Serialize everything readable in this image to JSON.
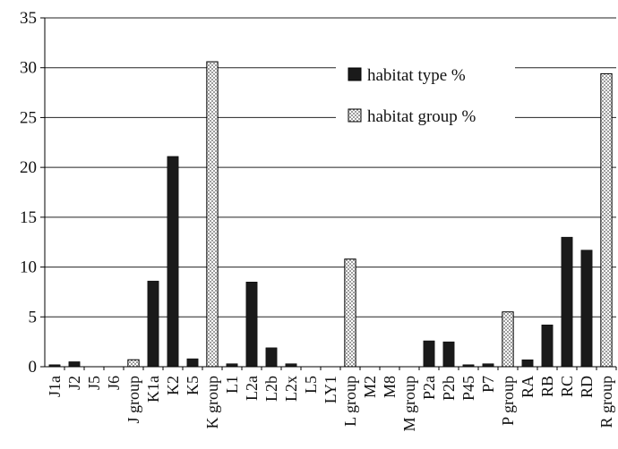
{
  "chart_data": {
    "type": "bar",
    "title": "",
    "xlabel": "",
    "ylabel": "",
    "ylim": [
      0,
      35
    ],
    "yticks": [
      0,
      5,
      10,
      15,
      20,
      25,
      30,
      35
    ],
    "grid": "horizontal",
    "legend_position": "top-right",
    "series": [
      {
        "name": "habitat type %",
        "style": "solid",
        "color": "#1a1a1a"
      },
      {
        "name": "habitat group %",
        "style": "dotted",
        "color": "#d8d8d8"
      }
    ],
    "bars": [
      {
        "label": "J1a",
        "value": 0.2,
        "kind": "type"
      },
      {
        "label": "J2",
        "value": 0.5,
        "kind": "type"
      },
      {
        "label": "J5",
        "value": 0,
        "kind": "type"
      },
      {
        "label": "J6",
        "value": 0,
        "kind": "type"
      },
      {
        "label": "J group",
        "value": 0.7,
        "kind": "group"
      },
      {
        "label": "K1a",
        "value": 8.6,
        "kind": "type"
      },
      {
        "label": "K2",
        "value": 21.1,
        "kind": "type"
      },
      {
        "label": "K5",
        "value": 0.8,
        "kind": "type"
      },
      {
        "label": "K group",
        "value": 30.6,
        "kind": "group"
      },
      {
        "label": "L1",
        "value": 0.3,
        "kind": "type"
      },
      {
        "label": "L2a",
        "value": 8.5,
        "kind": "type"
      },
      {
        "label": "L2b",
        "value": 1.9,
        "kind": "type"
      },
      {
        "label": "L2x",
        "value": 0.3,
        "kind": "type"
      },
      {
        "label": "L5",
        "value": 0,
        "kind": "type"
      },
      {
        "label": "LY1",
        "value": 0,
        "kind": "type"
      },
      {
        "label": "L group",
        "value": 10.8,
        "kind": "group"
      },
      {
        "label": "M2",
        "value": 0,
        "kind": "type"
      },
      {
        "label": "M8",
        "value": 0,
        "kind": "type"
      },
      {
        "label": "M group",
        "value": 0,
        "kind": "group"
      },
      {
        "label": "P2a",
        "value": 2.6,
        "kind": "type"
      },
      {
        "label": "P2b",
        "value": 2.5,
        "kind": "type"
      },
      {
        "label": "P45",
        "value": 0.2,
        "kind": "type"
      },
      {
        "label": "P7",
        "value": 0.3,
        "kind": "type"
      },
      {
        "label": "P group",
        "value": 5.5,
        "kind": "group"
      },
      {
        "label": "RA",
        "value": 0.7,
        "kind": "type"
      },
      {
        "label": "RB",
        "value": 4.2,
        "kind": "type"
      },
      {
        "label": "RC",
        "value": 13.0,
        "kind": "type"
      },
      {
        "label": "RD",
        "value": 11.7,
        "kind": "type"
      },
      {
        "label": "R group",
        "value": 29.4,
        "kind": "group"
      }
    ]
  }
}
